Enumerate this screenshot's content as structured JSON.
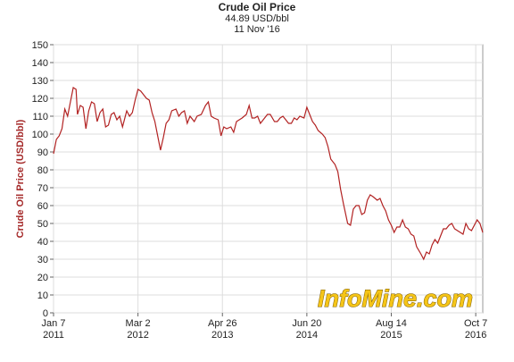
{
  "chart_data": {
    "type": "line",
    "title": "Crude Oil Price",
    "subtitle": "44.89 USD/bbl",
    "date_label": "11 Nov '16",
    "y_label": "Crude Oil Price (USD/bbl)",
    "watermark": "InfoMine.com",
    "color": "#b22222",
    "grid": true,
    "x": [
      "2011-01-07",
      "2011-01-21",
      "2011-02-04",
      "2011-02-18",
      "2011-03-04",
      "2011-03-18",
      "2011-04-01",
      "2011-04-15",
      "2011-04-29",
      "2011-05-06",
      "2011-05-20",
      "2011-06-03",
      "2011-06-17",
      "2011-07-01",
      "2011-07-15",
      "2011-07-29",
      "2011-08-12",
      "2011-08-26",
      "2011-09-09",
      "2011-09-23",
      "2011-10-07",
      "2011-10-21",
      "2011-11-04",
      "2011-11-18",
      "2011-12-02",
      "2011-12-16",
      "2012-01-06",
      "2012-01-20",
      "2012-02-03",
      "2012-02-17",
      "2012-03-02",
      "2012-03-16",
      "2012-03-30",
      "2012-04-13",
      "2012-04-27",
      "2012-05-11",
      "2012-05-25",
      "2012-06-08",
      "2012-06-22",
      "2012-07-06",
      "2012-07-20",
      "2012-08-03",
      "2012-08-17",
      "2012-09-07",
      "2012-09-21",
      "2012-10-05",
      "2012-10-19",
      "2012-11-02",
      "2012-11-16",
      "2012-12-07",
      "2012-12-21",
      "2013-01-11",
      "2013-02-01",
      "2013-02-15",
      "2013-03-01",
      "2013-03-15",
      "2013-04-05",
      "2013-04-19",
      "2013-05-03",
      "2013-05-17",
      "2013-06-07",
      "2013-06-21",
      "2013-07-05",
      "2013-07-19",
      "2013-08-02",
      "2013-08-23",
      "2013-09-06",
      "2013-09-20",
      "2013-10-04",
      "2013-10-18",
      "2013-11-01",
      "2013-11-15",
      "2013-12-06",
      "2013-12-20",
      "2014-01-10",
      "2014-01-24",
      "2014-02-07",
      "2014-02-21",
      "2014-03-07",
      "2014-03-21",
      "2014-04-04",
      "2014-04-18",
      "2014-05-02",
      "2014-05-16",
      "2014-06-06",
      "2014-06-20",
      "2014-07-04",
      "2014-07-18",
      "2014-08-01",
      "2014-08-15",
      "2014-09-05",
      "2014-09-19",
      "2014-10-03",
      "2014-10-17",
      "2014-11-07",
      "2014-11-21",
      "2014-12-05",
      "2014-12-19",
      "2015-01-09",
      "2015-01-23",
      "2015-02-06",
      "2015-02-20",
      "2015-03-06",
      "2015-03-20",
      "2015-04-03",
      "2015-04-17",
      "2015-05-01",
      "2015-05-15",
      "2015-06-05",
      "2015-06-19",
      "2015-07-03",
      "2015-07-17",
      "2015-07-31",
      "2015-08-14",
      "2015-08-28",
      "2015-09-11",
      "2015-09-25",
      "2015-10-09",
      "2015-10-23",
      "2015-11-06",
      "2015-11-20",
      "2015-12-04",
      "2015-12-18",
      "2016-01-08",
      "2016-01-22",
      "2016-02-05",
      "2016-02-19",
      "2016-03-04",
      "2016-03-18",
      "2016-04-01",
      "2016-04-15",
      "2016-04-29",
      "2016-05-13",
      "2016-05-27",
      "2016-06-10",
      "2016-06-24",
      "2016-07-08",
      "2016-07-22",
      "2016-08-05",
      "2016-08-19",
      "2016-09-02",
      "2016-09-16",
      "2016-09-30",
      "2016-10-14",
      "2016-10-28",
      "2016-11-11"
    ],
    "values": [
      89,
      97,
      99,
      103,
      114,
      110,
      118,
      126,
      125,
      111,
      116,
      115,
      103,
      113,
      118,
      117,
      107,
      112,
      114,
      104,
      105,
      111,
      112,
      108,
      110,
      104,
      113,
      110,
      112,
      119,
      125,
      124,
      122,
      120,
      119,
      112,
      107,
      99,
      91,
      98,
      106,
      108,
      113,
      114,
      110,
      112,
      113,
      106,
      110,
      107,
      110,
      111,
      116,
      118,
      110,
      109,
      108,
      99,
      104,
      103,
      104,
      101,
      107,
      108,
      109,
      111,
      116,
      109,
      109,
      110,
      106,
      108,
      111,
      111,
      107,
      107,
      109,
      110,
      108,
      106,
      106,
      109,
      108,
      110,
      109,
      115,
      111,
      107,
      105,
      102,
      100,
      98,
      93,
      86,
      83,
      79,
      69,
      61,
      50,
      49,
      58,
      60,
      60,
      55,
      56,
      63,
      66,
      65,
      63,
      64,
      60,
      57,
      52,
      49,
      45,
      48,
      48,
      52,
      48,
      47,
      44,
      43,
      37,
      33,
      30,
      34,
      33,
      38,
      41,
      39,
      43,
      47,
      47,
      49,
      50,
      47,
      46,
      45,
      44,
      50,
      47,
      46,
      49,
      52,
      50,
      44.89
    ],
    "xlim": [
      "2011-01-07",
      "2016-11-11"
    ],
    "xticks": [
      {
        "value": "2011-01-07",
        "label": "Jan 7\n2011"
      },
      {
        "value": "2012-03-02",
        "label": "Mar 2\n2012"
      },
      {
        "value": "2013-04-26",
        "label": "Apr 26\n2013"
      },
      {
        "value": "2014-06-20",
        "label": "Jun 20\n2014"
      },
      {
        "value": "2015-08-14",
        "label": "Aug 14\n2015"
      },
      {
        "value": "2016-10-07",
        "label": "Oct 7\n2016"
      }
    ],
    "ylim": [
      0,
      150
    ],
    "yticks": [
      0,
      10,
      20,
      30,
      40,
      50,
      60,
      70,
      80,
      90,
      100,
      110,
      120,
      130,
      140,
      150
    ]
  }
}
